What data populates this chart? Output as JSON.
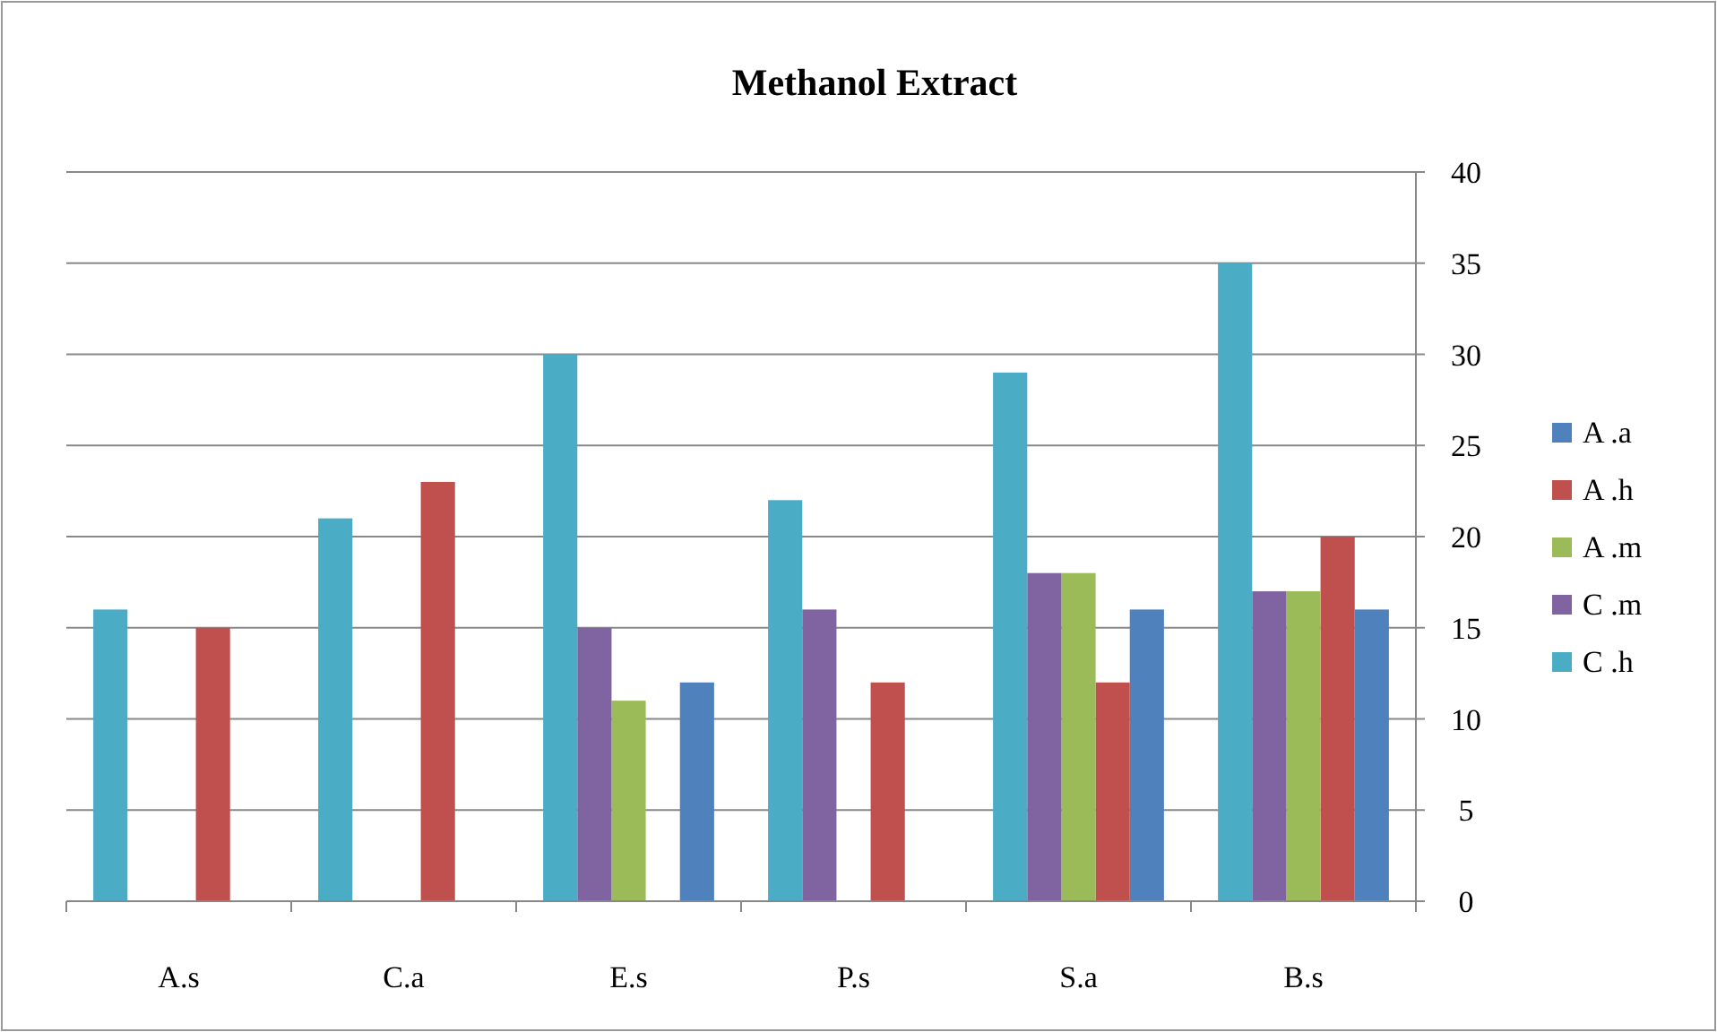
{
  "chart_data": {
    "type": "bar",
    "title": "Methanol Extract",
    "categories": [
      "A.s",
      "C.a",
      "E.s",
      "P.s",
      "S.a",
      "B.s"
    ],
    "ylim": [
      0,
      40
    ],
    "yticks": [
      0,
      5,
      10,
      15,
      20,
      25,
      30,
      35,
      40
    ],
    "grid": "y",
    "legend": "right",
    "series": [
      {
        "name": "A .a",
        "color": "#4f81bd",
        "values": [
          null,
          null,
          12,
          null,
          16,
          16
        ]
      },
      {
        "name": "A .h",
        "color": "#c0504d",
        "values": [
          15,
          23,
          null,
          12,
          12,
          20
        ]
      },
      {
        "name": "A .m",
        "color": "#9bbb59",
        "values": [
          null,
          null,
          11,
          null,
          18,
          17
        ]
      },
      {
        "name": "C .m",
        "color": "#8064a2",
        "values": [
          null,
          null,
          15,
          16,
          18,
          17
        ]
      },
      {
        "name": "C .h",
        "color": "#4bacc6",
        "values": [
          16,
          21,
          30,
          22,
          29,
          35
        ]
      }
    ]
  }
}
